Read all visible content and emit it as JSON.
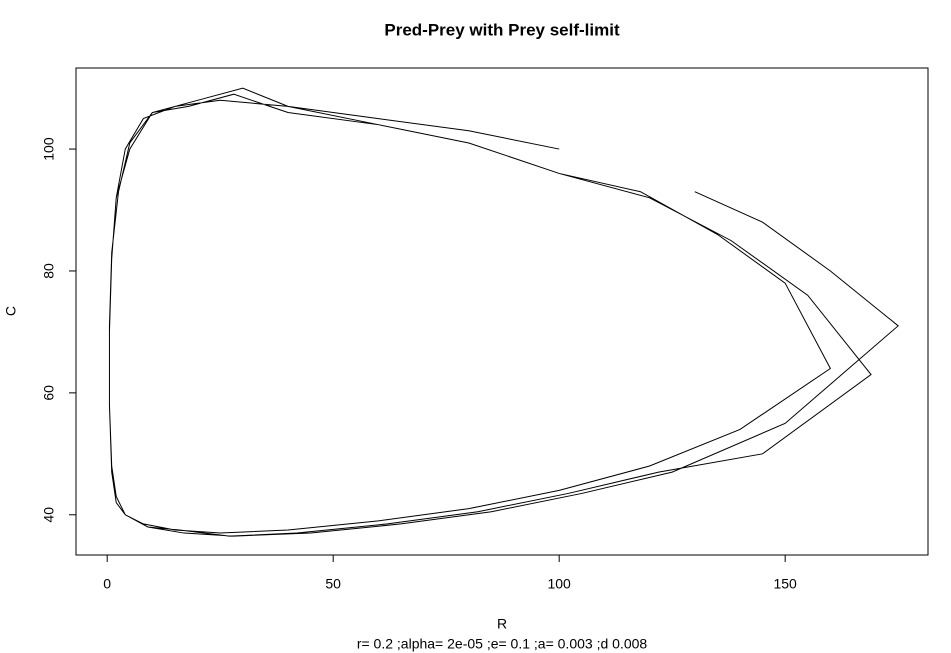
{
  "chart_data": {
    "type": "line",
    "title": "Pred-Prey with Prey self-limit",
    "xlabel": "R",
    "ylabel": "C",
    "subtitle": "r= 0.2 ;alpha= 2e-05 ;e= 0.1 ;a= 0.003 ;d 0.008",
    "xlim": [
      -6.9,
      181.6
    ],
    "ylim": [
      33.4,
      113.3
    ],
    "xticks": [
      0,
      50,
      100,
      150
    ],
    "yticks": [
      40,
      60,
      80,
      100
    ],
    "x": [
      100,
      80,
      60,
      40,
      25,
      15,
      8,
      4,
      2,
      1,
      0.5,
      0.5,
      1,
      2,
      4,
      8,
      15,
      25,
      40,
      60,
      80,
      100,
      120,
      140,
      160,
      150,
      135,
      118,
      100,
      80,
      60,
      40,
      28,
      18,
      10,
      5,
      2.5,
      1,
      0.5,
      0.5,
      1,
      2,
      4,
      9,
      16,
      27,
      42,
      62,
      82,
      102,
      122,
      145,
      169,
      155,
      138,
      120,
      100,
      80,
      60,
      40,
      30,
      20,
      10,
      5,
      2,
      1,
      0.5,
      0.5,
      1,
      2,
      4,
      9,
      17,
      28,
      45,
      65,
      85,
      105,
      125,
      150,
      175,
      160,
      145,
      130
    ],
    "series": [
      {
        "name": "C",
        "color": "#000000",
        "values": [
          100,
          103,
          105,
          107,
          108,
          107,
          105,
          100,
          92,
          82,
          70,
          58,
          48,
          43,
          40,
          38.5,
          37.5,
          37,
          37.5,
          39,
          41,
          44,
          48,
          54,
          64,
          78,
          86,
          93,
          96,
          101,
          104,
          106,
          109,
          107,
          106,
          101,
          93,
          83,
          71,
          58,
          48,
          43,
          40,
          38,
          37.5,
          36.5,
          37,
          38.5,
          40.5,
          43.5,
          47,
          50,
          63,
          76,
          85,
          92,
          96,
          101,
          104,
          107,
          110,
          108,
          106,
          100,
          92,
          82,
          70,
          58,
          47,
          42,
          40,
          38,
          37,
          36.5,
          37,
          38.5,
          40.5,
          43.5,
          47,
          55,
          71,
          80,
          88,
          93
        ]
      }
    ]
  }
}
